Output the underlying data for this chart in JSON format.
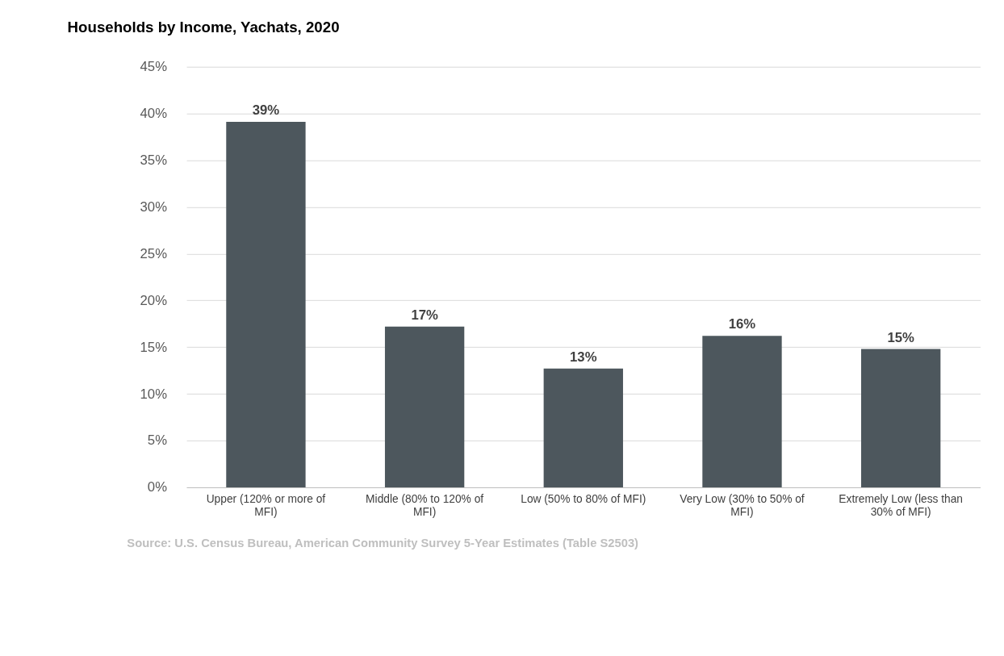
{
  "chart_data": {
    "type": "bar",
    "title": "Households by Income, Yachats, 2020",
    "categories": [
      "Upper (120% or more of MFI)",
      "Middle (80%  to 120% of MFI)",
      "Low (50%  to 80% of MFI)",
      "Very Low (30% to 50% of MFI)",
      "Extremely Low (less than 30% of MFI)"
    ],
    "values": [
      39.1,
      17.2,
      12.7,
      16.2,
      14.8
    ],
    "value_labels": [
      "39%",
      "17%",
      "13%",
      "16%",
      "15%"
    ],
    "color": "#4d575d",
    "ylim": [
      0,
      45
    ],
    "yticks": [
      {
        "value": 0,
        "label": "0%"
      },
      {
        "value": 5,
        "label": "5%"
      },
      {
        "value": 10,
        "label": "10%"
      },
      {
        "value": 15,
        "label": "15%"
      },
      {
        "value": 20,
        "label": "20%"
      },
      {
        "value": 25,
        "label": "25%"
      },
      {
        "value": 30,
        "label": "30%"
      },
      {
        "value": 35,
        "label": "35%"
      },
      {
        "value": 40,
        "label": "40%"
      },
      {
        "value": 45,
        "label": "45%"
      }
    ],
    "grid": "y",
    "annotations": [
      "Source: U.S. Census Bureau,  American Community Survey 5-Year Estimates (Table S2503)"
    ]
  }
}
